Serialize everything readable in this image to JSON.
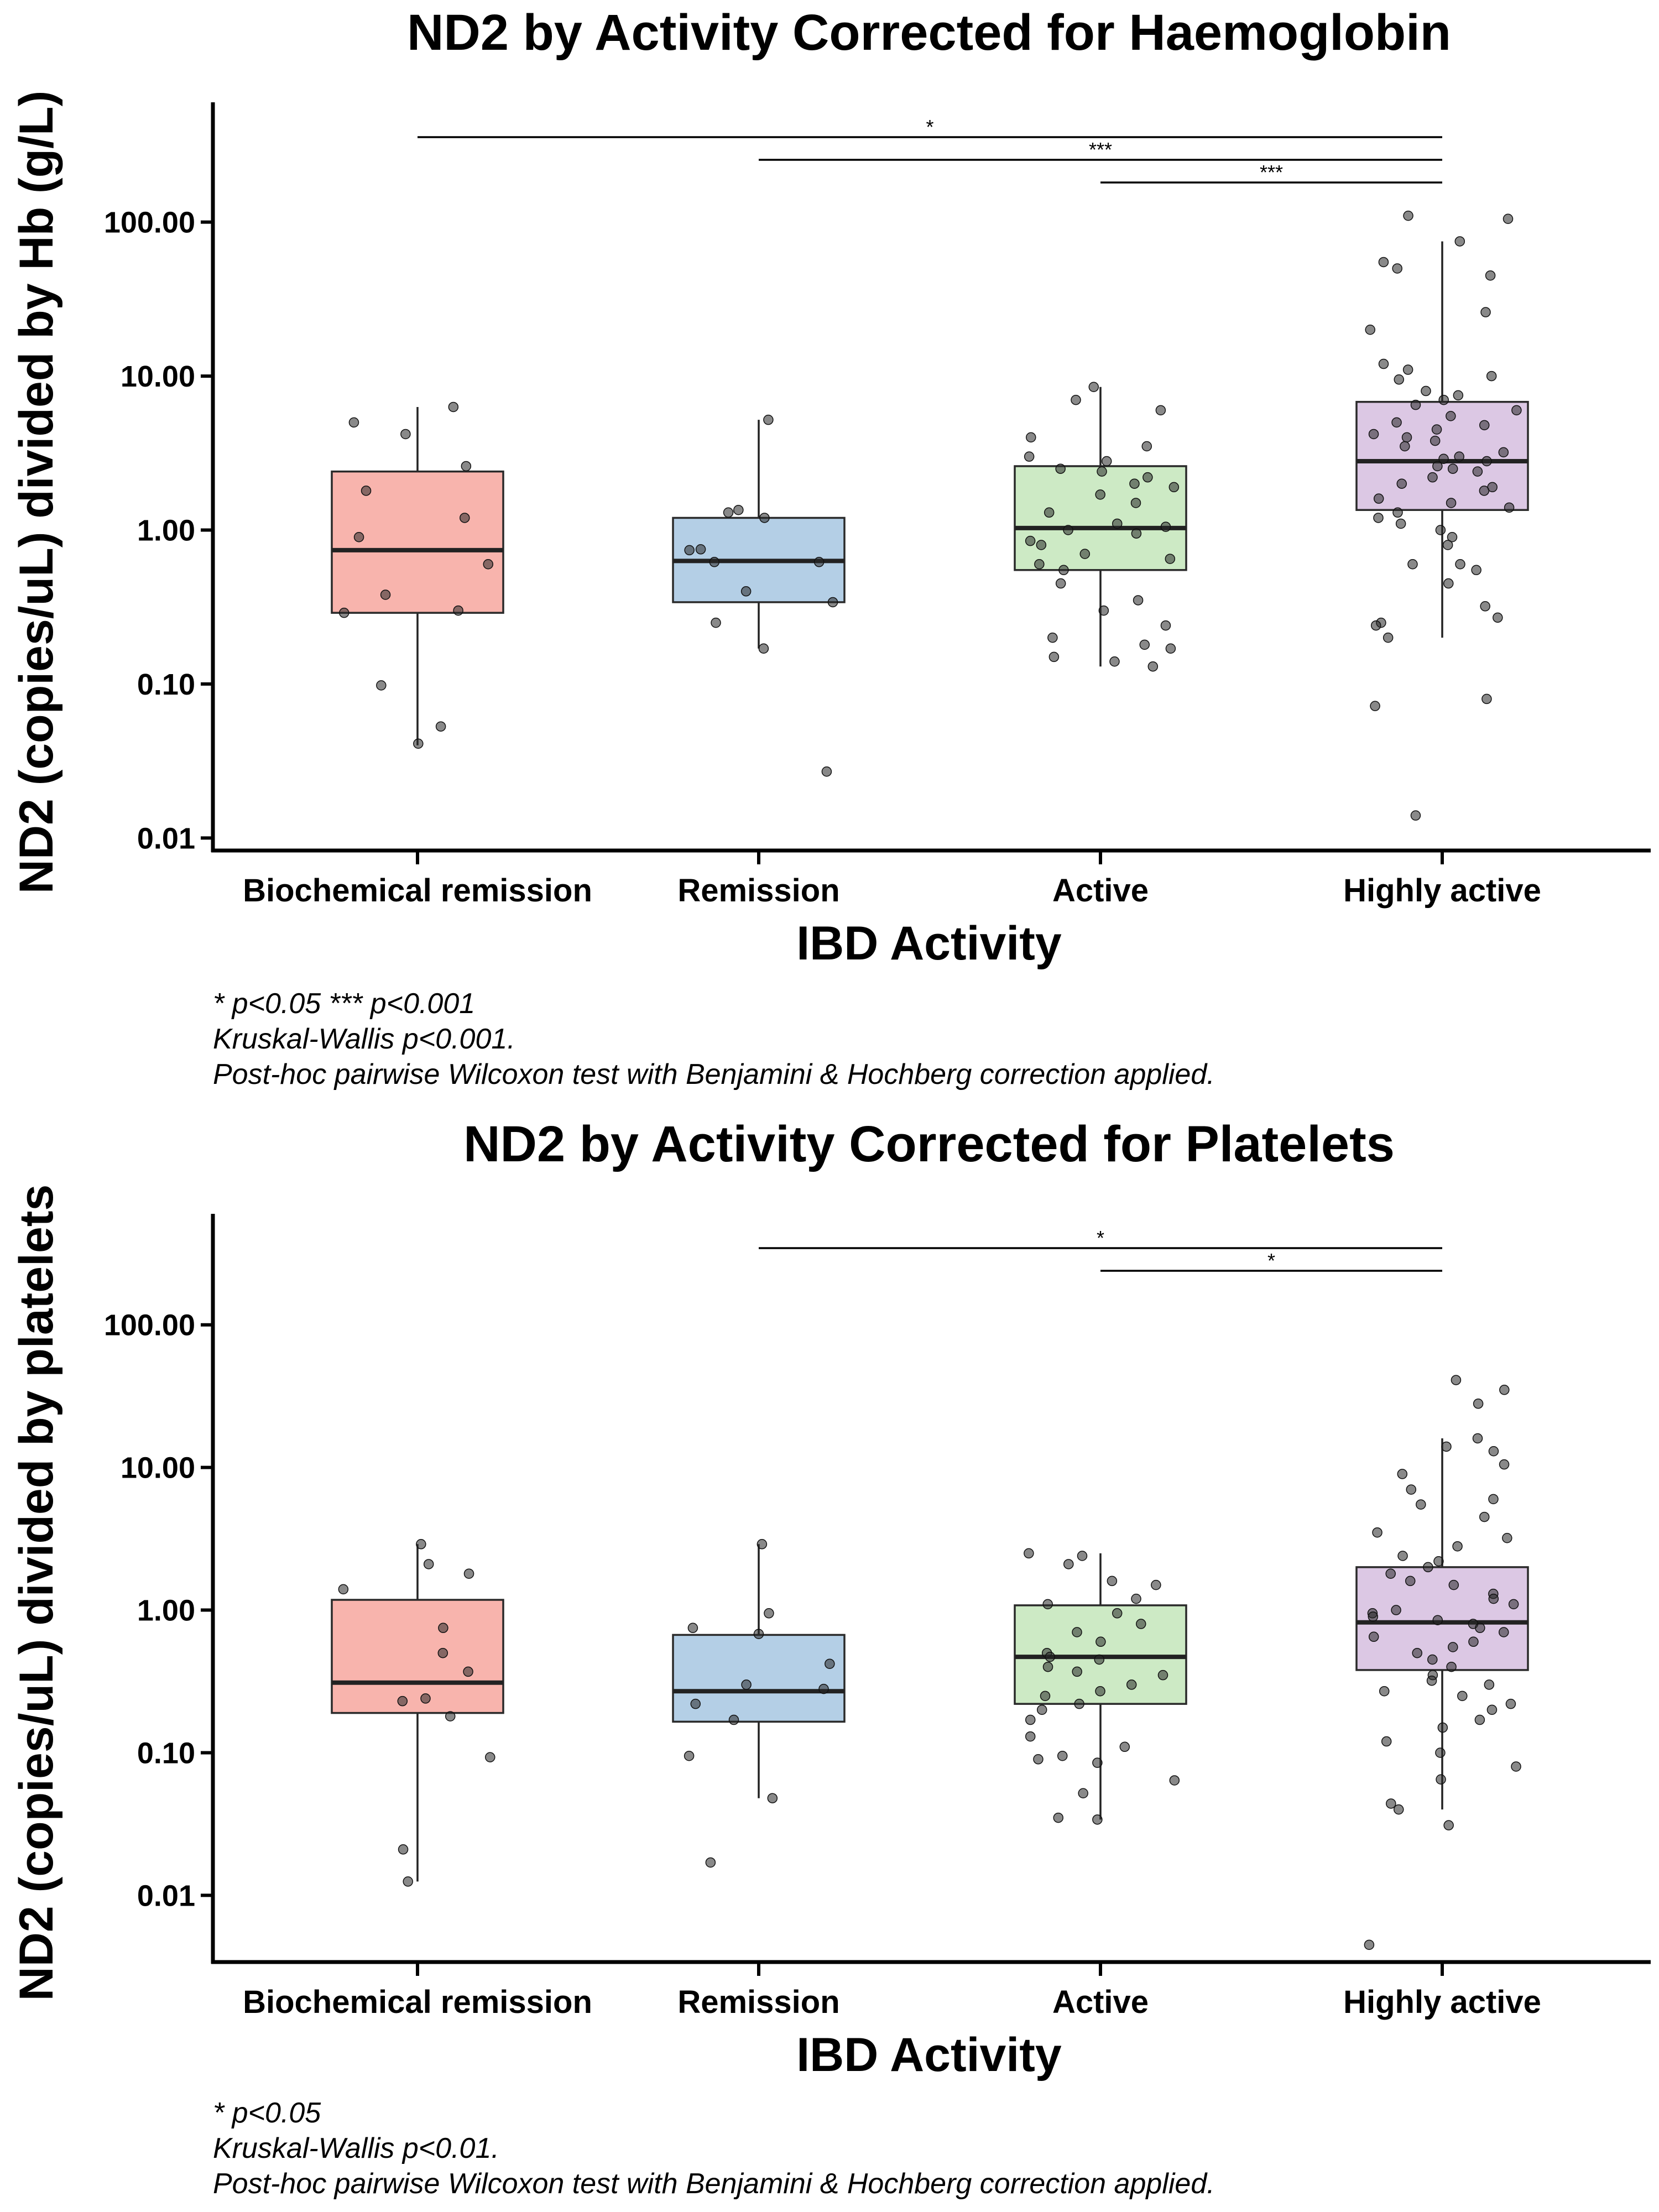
{
  "chart_data": [
    {
      "type": "box",
      "title": "ND2 by Activity Corrected for Haemoglobin",
      "xlabel": "IBD Activity",
      "ylabel": "ND2 (copies/uL) divided by Hb (g/L)",
      "y_scale": "log10",
      "ylim": [
        0.0085,
        600
      ],
      "yticks": [
        0.01,
        0.1,
        1,
        10,
        100
      ],
      "ytick_labels": [
        "0.01",
        "0.10",
        "1.00",
        "10.00",
        "100.00"
      ],
      "categories": [
        "Biochemical remission",
        "Remission",
        "Active",
        "Highly active"
      ],
      "colors": [
        "#f8b4ad",
        "#b4cfe6",
        "#cdeac5",
        "#dcc8e4"
      ],
      "boxes": [
        {
          "q1": 0.29,
          "median": 0.74,
          "q3": 2.4,
          "whisker_low": 0.04,
          "whisker_high": 6.3
        },
        {
          "q1": 0.34,
          "median": 0.63,
          "q3": 1.2,
          "whisker_low": 0.17,
          "whisker_high": 5.2
        },
        {
          "q1": 0.55,
          "median": 1.03,
          "q3": 2.6,
          "whisker_low": 0.13,
          "whisker_high": 8.5
        },
        {
          "q1": 1.35,
          "median": 2.8,
          "q3": 6.8,
          "whisker_low": 0.2,
          "whisker_high": 75
        }
      ],
      "points": [
        [
          6.3,
          5.0,
          4.2,
          2.6,
          1.8,
          1.2,
          0.9,
          0.6,
          0.38,
          0.3,
          0.29,
          0.098,
          0.053,
          0.041
        ],
        [
          5.2,
          1.35,
          1.3,
          1.2,
          0.75,
          0.74,
          0.62,
          0.62,
          0.4,
          0.34,
          0.25,
          0.17,
          0.027
        ],
        [
          8.5,
          7.0,
          6.0,
          4.0,
          3.5,
          3.0,
          2.8,
          2.5,
          2.4,
          2.2,
          2.0,
          1.9,
          1.7,
          1.5,
          1.3,
          1.1,
          1.05,
          1.0,
          0.95,
          0.85,
          0.8,
          0.7,
          0.65,
          0.6,
          0.55,
          0.45,
          0.35,
          0.3,
          0.24,
          0.2,
          0.18,
          0.17,
          0.15,
          0.14,
          0.13
        ],
        [
          110,
          105,
          75,
          55,
          50,
          45,
          26,
          20,
          12,
          11,
          10,
          9.5,
          8,
          7.5,
          7,
          6.5,
          6,
          5.5,
          5,
          4.8,
          4.5,
          4.2,
          4.0,
          3.8,
          3.5,
          3.2,
          3.0,
          2.9,
          2.8,
          2.6,
          2.5,
          2.4,
          2.2,
          2.0,
          1.9,
          1.8,
          1.6,
          1.5,
          1.4,
          1.3,
          1.2,
          1.1,
          1.0,
          0.9,
          0.8,
          0.6,
          0.6,
          0.55,
          0.45,
          0.32,
          0.27,
          0.25,
          0.24,
          0.2,
          0.08,
          0.072,
          0.014
        ]
      ],
      "significance": [
        {
          "from": 0,
          "to": 3,
          "label": "*"
        },
        {
          "from": 1,
          "to": 3,
          "label": "***"
        },
        {
          "from": 2,
          "to": 3,
          "label": "***"
        }
      ],
      "notes": [
        "* p<0.05 *** p<0.001",
        "Kruskal-Wallis p<0.001.",
        "Post-hoc pairwise Wilcoxon test with Benjamini & Hochberg correction applied."
      ]
    },
    {
      "type": "box",
      "title": "ND2 by Activity Corrected for Platelets",
      "xlabel": "IBD Activity",
      "ylabel": "ND2 (copies/uL) divided by platelets",
      "y_scale": "log10",
      "ylim": [
        0.0035,
        600
      ],
      "yticks": [
        0.01,
        0.1,
        1,
        10,
        100
      ],
      "ytick_labels": [
        "0.01",
        "0.10",
        "1.00",
        "10.00",
        "100.00"
      ],
      "categories": [
        "Biochemical remission",
        "Remission",
        "Active",
        "Highly active"
      ],
      "colors": [
        "#f8b4ad",
        "#b4cfe6",
        "#cdeac5",
        "#dcc8e4"
      ],
      "boxes": [
        {
          "q1": 0.19,
          "median": 0.31,
          "q3": 1.18,
          "whisker_low": 0.0125,
          "whisker_high": 2.9
        },
        {
          "q1": 0.165,
          "median": 0.27,
          "q3": 0.67,
          "whisker_low": 0.048,
          "whisker_high": 2.9
        },
        {
          "q1": 0.22,
          "median": 0.47,
          "q3": 1.08,
          "whisker_low": 0.034,
          "whisker_high": 2.5
        },
        {
          "q1": 0.38,
          "median": 0.82,
          "q3": 2.0,
          "whisker_low": 0.04,
          "whisker_high": 16
        }
      ],
      "points": [
        [
          2.9,
          2.1,
          1.8,
          1.4,
          0.75,
          0.5,
          0.37,
          0.24,
          0.23,
          0.18,
          0.093,
          0.021,
          0.0125
        ],
        [
          2.9,
          0.95,
          0.75,
          0.68,
          0.42,
          0.3,
          0.28,
          0.22,
          0.17,
          0.095,
          0.048,
          0.017
        ],
        [
          2.5,
          2.4,
          2.1,
          1.6,
          1.5,
          1.2,
          1.1,
          0.95,
          0.8,
          0.7,
          0.6,
          0.5,
          0.47,
          0.45,
          0.4,
          0.37,
          0.35,
          0.3,
          0.27,
          0.25,
          0.22,
          0.2,
          0.17,
          0.13,
          0.11,
          0.095,
          0.09,
          0.085,
          0.064,
          0.052,
          0.035,
          0.034
        ],
        [
          41,
          35,
          28,
          16,
          14,
          13,
          10.5,
          9,
          7,
          6,
          5.5,
          4.5,
          3.5,
          3.2,
          2.8,
          2.4,
          2.2,
          2.0,
          1.8,
          1.6,
          1.5,
          1.3,
          1.2,
          1.1,
          1.0,
          0.95,
          0.9,
          0.85,
          0.8,
          0.75,
          0.7,
          0.65,
          0.6,
          0.55,
          0.5,
          0.45,
          0.4,
          0.35,
          0.32,
          0.3,
          0.27,
          0.25,
          0.22,
          0.2,
          0.17,
          0.15,
          0.12,
          0.1,
          0.08,
          0.065,
          0.044,
          0.04,
          0.031,
          0.0045
        ]
      ],
      "significance": [
        {
          "from": 1,
          "to": 3,
          "label": "*"
        },
        {
          "from": 2,
          "to": 3,
          "label": "*"
        }
      ],
      "notes": [
        "* p<0.05",
        "Kruskal-Wallis p<0.01.",
        "Post-hoc pairwise Wilcoxon test with Benjamini & Hochberg correction applied."
      ]
    }
  ]
}
